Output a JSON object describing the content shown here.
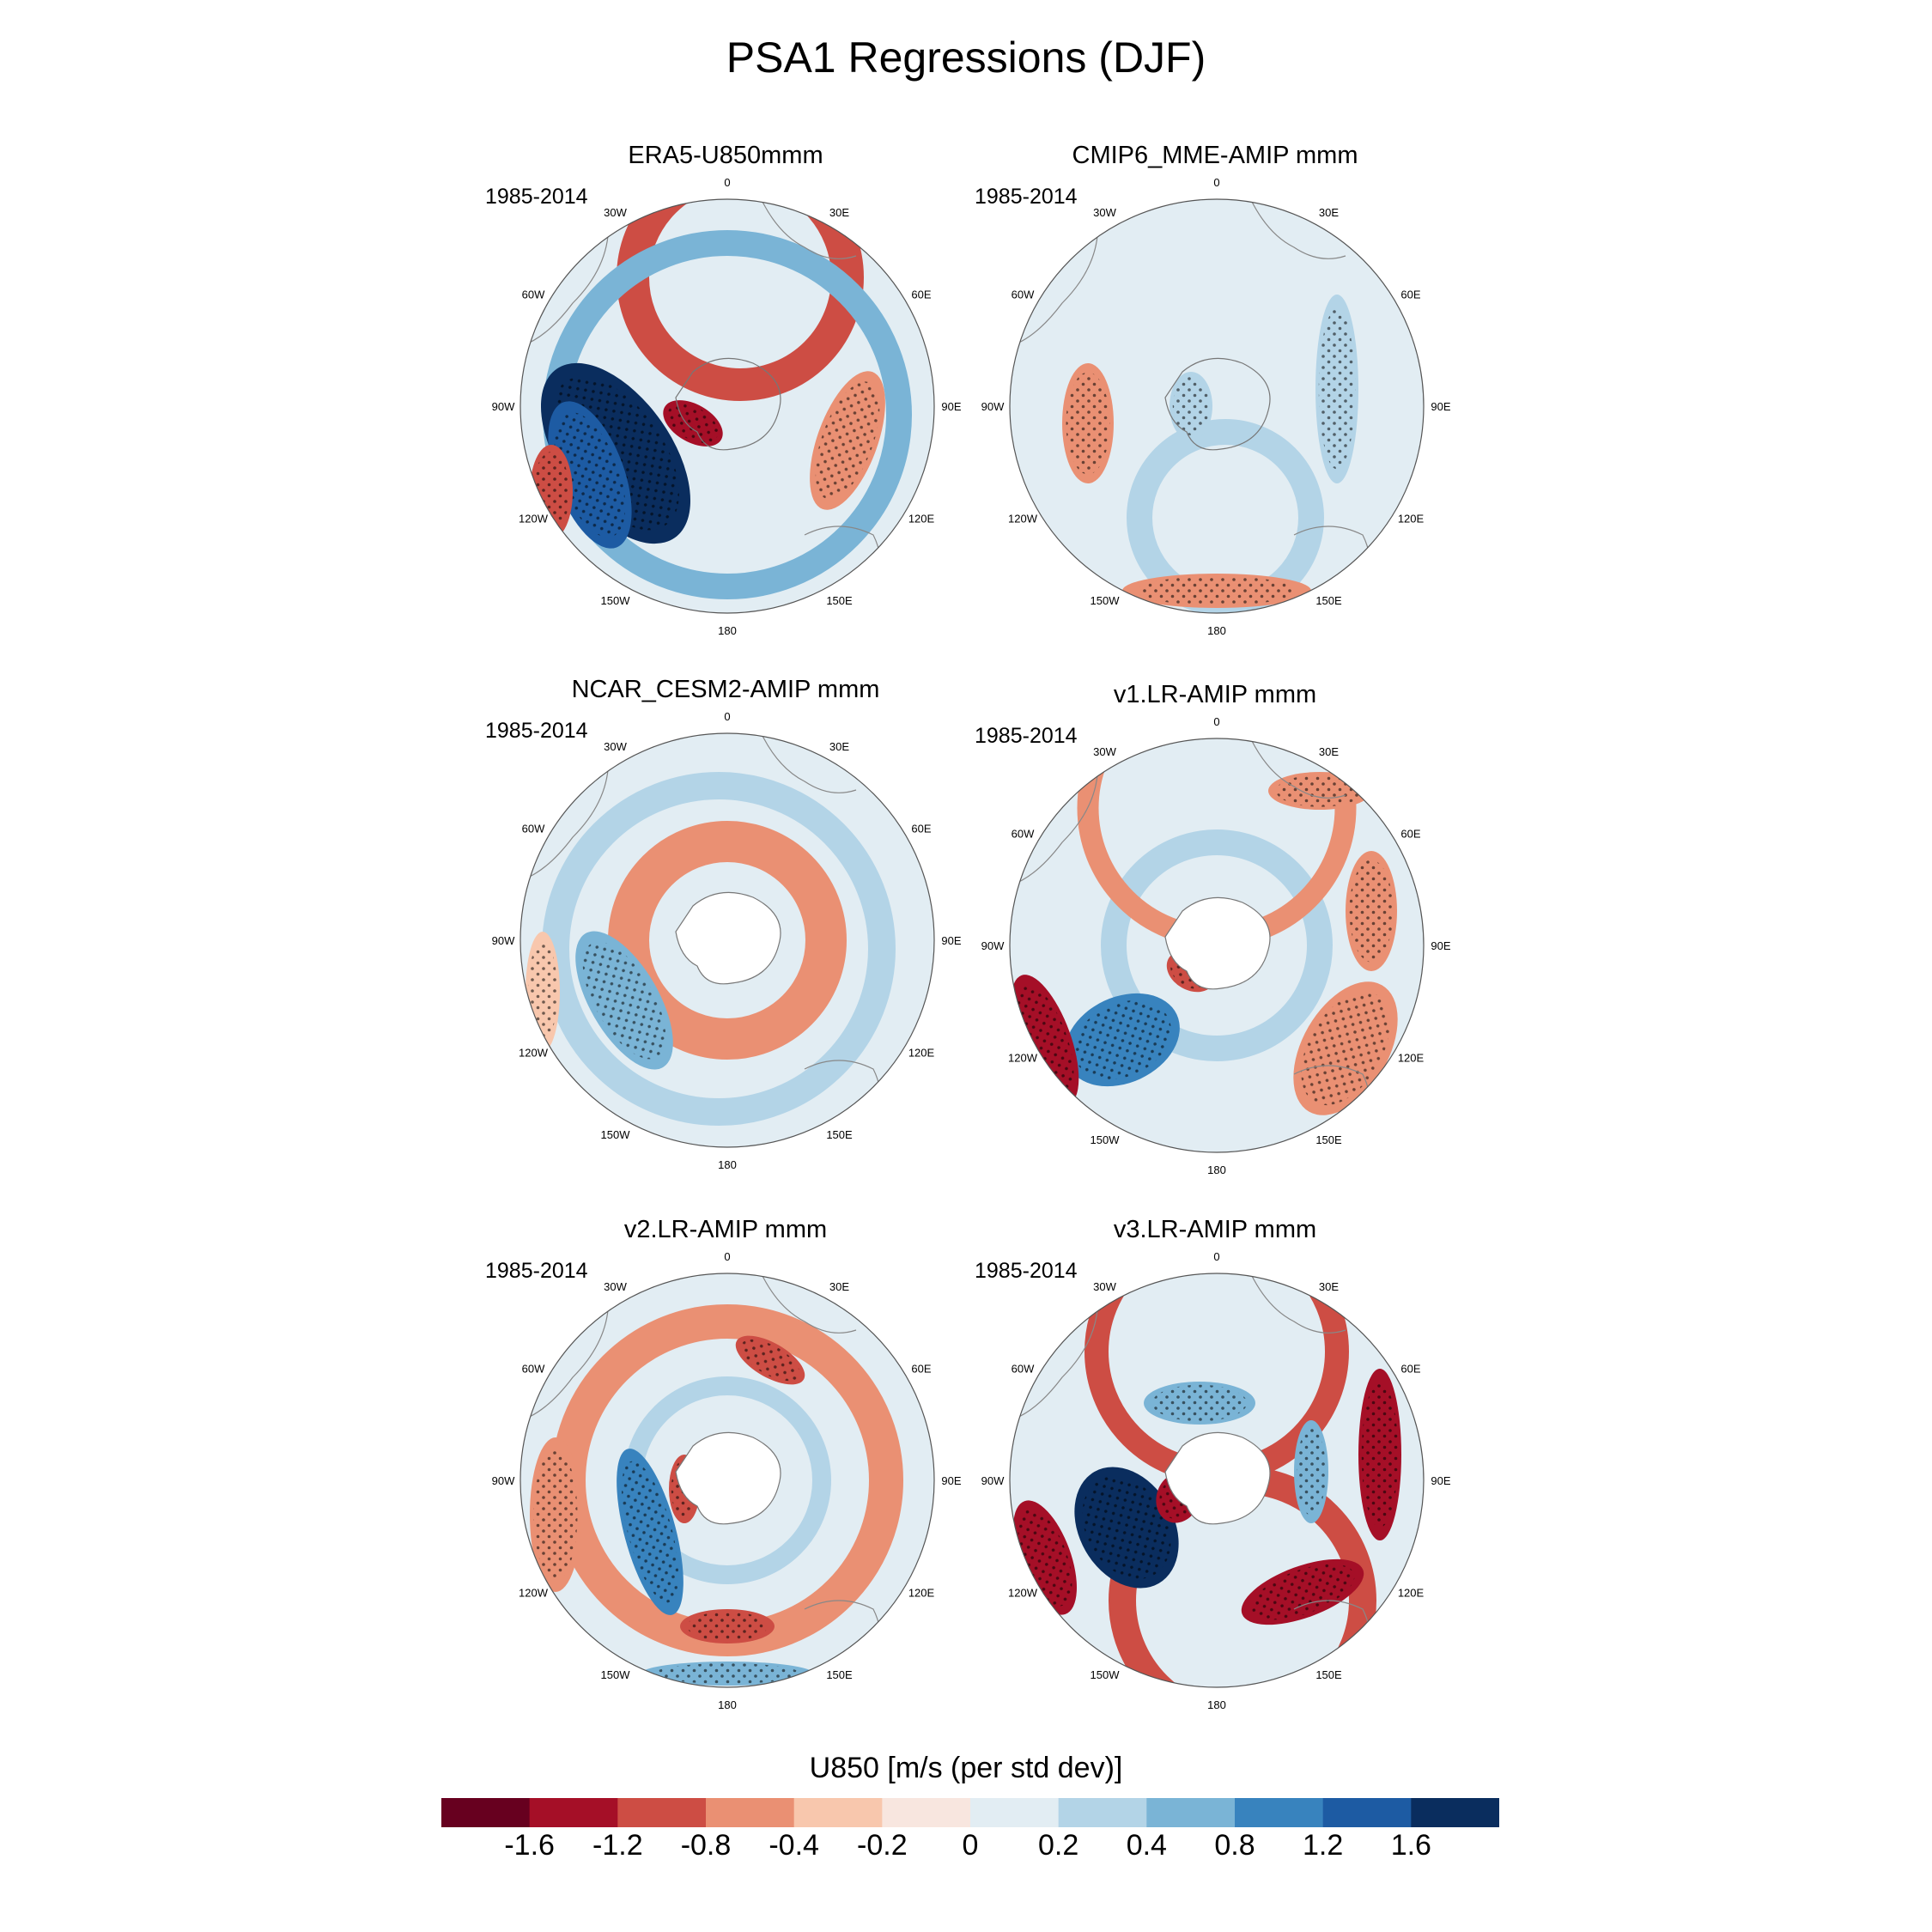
{
  "chart_data": {
    "type": "heatmap",
    "projection": "south polar stereographic",
    "title": "PSA1 Regressions (DJF)",
    "colorbar": {
      "title": "U850 [m/s (per std dev)]",
      "tick_labels": [
        "-1.6",
        "-1.2",
        "-0.8",
        "-0.4",
        "-0.2",
        "0",
        "0.2",
        "0.4",
        "0.8",
        "1.2",
        "1.6"
      ],
      "colors": [
        "#67001f",
        "#a50f27",
        "#cd4d44",
        "#ea9073",
        "#f8c7ad",
        "#f8e6df",
        "#e2edf3",
        "#b3d4e7",
        "#7ab4d6",
        "#3883be",
        "#1d5ba3",
        "#0a2d5e"
      ]
    },
    "longitude_labels": [
      "0",
      "30E",
      "60E",
      "90E",
      "120E",
      "150E",
      "180",
      "150W",
      "120W",
      "90W",
      "60W",
      "30W"
    ],
    "panels": [
      {
        "title": "ERA5-U850mmm",
        "period": "1985-2014",
        "land_mask": false
      },
      {
        "title": "CMIP6_MME-AMIP  mmm",
        "period": "1985-2014",
        "land_mask": false
      },
      {
        "title": "NCAR_CESM2-AMIP  mmm",
        "period": "1985-2014",
        "land_mask": true
      },
      {
        "title": "v1.LR-AMIP  mmm",
        "period": "1985-2014",
        "land_mask": true
      },
      {
        "title": "v2.LR-AMIP  mmm",
        "period": "1985-2014",
        "land_mask": true
      },
      {
        "title": "v3.LR-AMIP  mmm",
        "period": "1985-2014",
        "land_mask": true
      }
    ]
  }
}
